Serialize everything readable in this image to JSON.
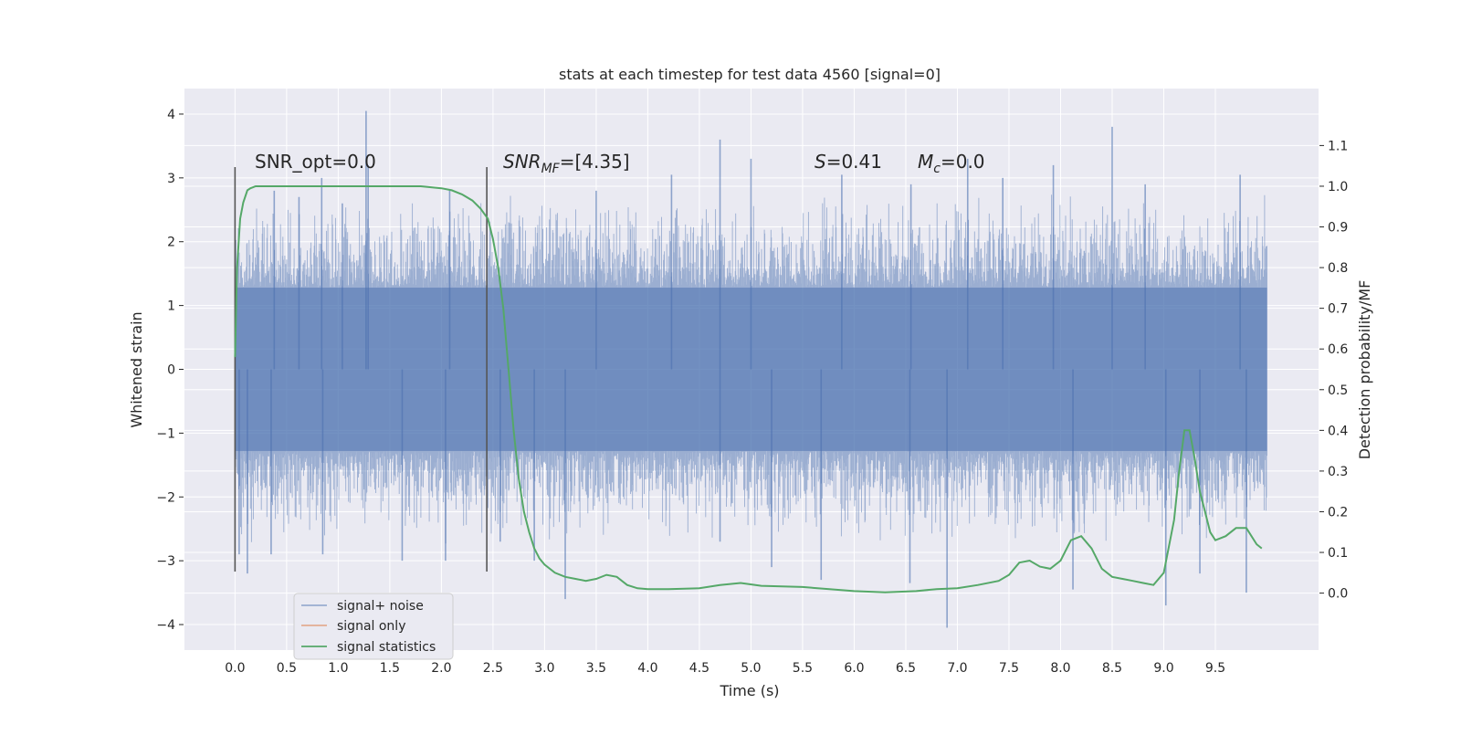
{
  "chart_data": {
    "type": "line",
    "title": "stats at each timestep for test data 4560 [signal=0]",
    "xlabel": "Time (s)",
    "ylabel": "Whitened strain",
    "ylabel_right": "Detection probability/MF",
    "xlim": [
      -0.49,
      10.5
    ],
    "ylim": [
      -4.4,
      4.4
    ],
    "ylim_right": [
      -0.14,
      1.24
    ],
    "x_ticks": [
      0.0,
      0.5,
      1.0,
      1.5,
      2.0,
      2.5,
      3.0,
      3.5,
      4.0,
      4.5,
      5.0,
      5.5,
      6.0,
      6.5,
      7.0,
      7.5,
      8.0,
      8.5,
      9.0,
      9.5
    ],
    "x_tick_labels": [
      "0.0",
      "0.5",
      "1.0",
      "1.5",
      "2.0",
      "2.5",
      "3.0",
      "3.5",
      "4.0",
      "4.5",
      "5.0",
      "5.5",
      "6.0",
      "6.5",
      "7.0",
      "7.5",
      "8.0",
      "8.5",
      "9.0",
      "9.5"
    ],
    "y_ticks": [
      4,
      3,
      2,
      1,
      0,
      -1,
      -2,
      -3,
      -4
    ],
    "y_tick_labels": [
      "4",
      "3",
      "2",
      "1",
      "0",
      "−1",
      "−2",
      "−3",
      "−4"
    ],
    "y2_ticks": [
      1.1,
      1.0,
      0.9,
      0.8,
      0.7,
      0.6,
      0.5,
      0.4,
      0.3,
      0.2,
      0.1,
      0.0
    ],
    "y2_tick_labels": [
      "1.1",
      "1.0",
      "0.9",
      "0.8",
      "0.7",
      "0.6",
      "0.5",
      "0.4",
      "0.3",
      "0.2",
      "0.1",
      "0.0"
    ],
    "grid": true,
    "legend_position": "lower-left",
    "colors": {
      "noise": "#4c72b0",
      "signal": "#dd8452",
      "stats": "#55a868",
      "markers": "#555555",
      "axes_bg": "#eaeaf2",
      "grid": "#ffffff"
    },
    "annotations": {
      "snr_opt": "SNR_opt=0.0",
      "snr_mf_prefix": "SNR",
      "snr_mf_sub": "MF",
      "snr_mf_suffix": "=[4.35]",
      "s_var": "S",
      "s_value": "=0.41",
      "mc_var": "M",
      "mc_sub": "c",
      "mc_value": "=0.0"
    },
    "vertical_markers": [
      0.0,
      2.44
    ],
    "marker_ylim": [
      -3.17,
      3.17
    ],
    "series": [
      {
        "name": "signal+ noise",
        "t_start": 0.0,
        "t_end": 10.0,
        "typical_min": -2.2,
        "typical_max": 2.2,
        "core_min": -1.28,
        "core_max": 1.28,
        "spikes": [
          {
            "x": 0.04,
            "y": -2.9
          },
          {
            "x": 0.12,
            "y": -3.2
          },
          {
            "x": 0.35,
            "y": -2.9
          },
          {
            "x": 0.38,
            "y": 2.8
          },
          {
            "x": 0.62,
            "y": 2.7
          },
          {
            "x": 0.85,
            "y": -2.9
          },
          {
            "x": 0.84,
            "y": 3.0
          },
          {
            "x": 1.04,
            "y": 2.6
          },
          {
            "x": 1.27,
            "y": 4.05
          },
          {
            "x": 1.29,
            "y": 3.2
          },
          {
            "x": 1.62,
            "y": -3.0
          },
          {
            "x": 2.04,
            "y": -3.0
          },
          {
            "x": 2.08,
            "y": 2.8
          },
          {
            "x": 2.57,
            "y": -2.7
          },
          {
            "x": 2.9,
            "y": -3.0
          },
          {
            "x": 3.2,
            "y": -3.6
          },
          {
            "x": 3.5,
            "y": 2.8
          },
          {
            "x": 4.23,
            "y": 3.05
          },
          {
            "x": 4.7,
            "y": 3.6
          },
          {
            "x": 4.7,
            "y": -2.7
          },
          {
            "x": 5.0,
            "y": 3.3
          },
          {
            "x": 5.2,
            "y": -3.1
          },
          {
            "x": 5.68,
            "y": -3.3
          },
          {
            "x": 5.88,
            "y": 3.05
          },
          {
            "x": 6.55,
            "y": 2.9
          },
          {
            "x": 6.54,
            "y": -3.35
          },
          {
            "x": 6.9,
            "y": -4.05
          },
          {
            "x": 7.1,
            "y": 3.3
          },
          {
            "x": 7.44,
            "y": 3.0
          },
          {
            "x": 7.93,
            "y": 3.2
          },
          {
            "x": 8.12,
            "y": -3.45
          },
          {
            "x": 8.5,
            "y": 3.8
          },
          {
            "x": 8.82,
            "y": 2.9
          },
          {
            "x": 9.02,
            "y": -3.7
          },
          {
            "x": 9.35,
            "y": -3.2
          },
          {
            "x": 9.74,
            "y": 3.05
          },
          {
            "x": 9.8,
            "y": -3.5
          }
        ]
      },
      {
        "name": "signal only",
        "values": []
      },
      {
        "name": "signal statistics",
        "axis": "right",
        "x": [
          0.0,
          0.02,
          0.05,
          0.08,
          0.12,
          0.15,
          0.2,
          0.3,
          0.5,
          1.0,
          1.5,
          1.8,
          2.0,
          2.1,
          2.2,
          2.3,
          2.38,
          2.45,
          2.5,
          2.55,
          2.6,
          2.65,
          2.7,
          2.75,
          2.8,
          2.85,
          2.9,
          2.95,
          3.0,
          3.1,
          3.2,
          3.3,
          3.4,
          3.5,
          3.6,
          3.7,
          3.8,
          3.9,
          4.0,
          4.2,
          4.5,
          4.7,
          4.9,
          5.1,
          5.5,
          6.0,
          6.3,
          6.6,
          6.8,
          7.0,
          7.2,
          7.4,
          7.5,
          7.6,
          7.7,
          7.8,
          7.9,
          8.0,
          8.1,
          8.2,
          8.3,
          8.4,
          8.5,
          8.6,
          8.7,
          8.8,
          8.9,
          9.0,
          9.1,
          9.15,
          9.2,
          9.25,
          9.3,
          9.35,
          9.4,
          9.45,
          9.5,
          9.6,
          9.7,
          9.8,
          9.9,
          9.95
        ],
        "values": [
          0.58,
          0.8,
          0.92,
          0.96,
          0.99,
          0.995,
          1.0,
          1.0,
          1.0,
          1.0,
          1.0,
          1.0,
          0.995,
          0.99,
          0.98,
          0.965,
          0.945,
          0.92,
          0.87,
          0.8,
          0.7,
          0.55,
          0.4,
          0.28,
          0.2,
          0.15,
          0.11,
          0.085,
          0.07,
          0.05,
          0.04,
          0.035,
          0.03,
          0.035,
          0.045,
          0.04,
          0.02,
          0.012,
          0.01,
          0.01,
          0.012,
          0.02,
          0.025,
          0.018,
          0.015,
          0.005,
          0.002,
          0.005,
          0.01,
          0.012,
          0.02,
          0.03,
          0.045,
          0.075,
          0.08,
          0.065,
          0.06,
          0.08,
          0.13,
          0.14,
          0.11,
          0.06,
          0.04,
          0.035,
          0.03,
          0.025,
          0.02,
          0.05,
          0.18,
          0.3,
          0.4,
          0.4,
          0.33,
          0.25,
          0.2,
          0.15,
          0.13,
          0.14,
          0.16,
          0.16,
          0.12,
          0.11
        ]
      }
    ]
  }
}
